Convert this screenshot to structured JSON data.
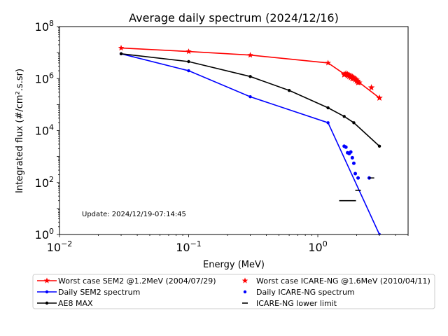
{
  "chart_data": {
    "type": "scatter",
    "title": "Average daily spectrum (2024/12/16)",
    "xlabel": "Energy (MeV)",
    "ylabel": "Integrated flux (#/cm².s.sr)",
    "xscale": "log",
    "yscale": "log",
    "xlim": [
      0.01,
      5.0
    ],
    "ylim": [
      1,
      100000000
    ],
    "grid": false,
    "legend_position": "below",
    "x_ticks": [
      {
        "value": 0.01,
        "base": "10",
        "exp": "−2"
      },
      {
        "value": 0.1,
        "base": "10",
        "exp": "−1"
      },
      {
        "value": 1,
        "base": "10",
        "exp": "0"
      }
    ],
    "y_ticks": [
      {
        "value": 1,
        "base": "10",
        "exp": "0"
      },
      {
        "value": 100,
        "base": "10",
        "exp": "2"
      },
      {
        "value": 10000,
        "base": "10",
        "exp": "4"
      },
      {
        "value": 1000000,
        "base": "10",
        "exp": "6"
      },
      {
        "value": 100000000,
        "base": "10",
        "exp": "8"
      }
    ],
    "annotation": "Update: 2024/12/19-07:14:45",
    "series": [
      {
        "name": "Worst case SEM2 @1.2MeV (2004/07/29)",
        "color": "#ff0000",
        "kind": "line",
        "marker": "star",
        "x": [
          0.03,
          0.1,
          0.3,
          1.2,
          1.6,
          1.65,
          1.7,
          1.75,
          1.8,
          1.85,
          1.9,
          1.95,
          2.0,
          2.05,
          2.1,
          3.0
        ],
        "y": [
          15000000,
          11000000,
          8000000,
          4000000,
          1500000,
          1600000,
          1500000,
          1400000,
          1300000,
          1200000,
          1100000,
          1000000,
          900000,
          800000,
          700000,
          180000
        ]
      },
      {
        "name": "Daily SEM2 spectrum",
        "color": "#0000ff",
        "kind": "line",
        "marker": "dot",
        "x": [
          0.03,
          0.1,
          0.3,
          1.2,
          3.0
        ],
        "y": [
          9000000,
          2000000,
          200000,
          20000,
          1
        ]
      },
      {
        "name": "AE8 MAX",
        "color": "#000000",
        "kind": "line",
        "marker": "dot",
        "x": [
          0.03,
          0.1,
          0.3,
          0.6,
          1.2,
          1.6,
          1.9,
          3.0
        ],
        "y": [
          9000000,
          4500000,
          1200000,
          350000,
          75000,
          35000,
          20000,
          2500
        ]
      },
      {
        "name": "Worst case ICARE-NG @1.6MeV (2010/04/11)",
        "color": "#ff0000",
        "kind": "scatter",
        "marker": "star",
        "x": [
          1.6,
          1.65,
          1.7,
          1.75,
          1.8,
          1.85,
          1.9,
          1.95,
          2.0,
          2.05,
          2.6,
          3.0
        ],
        "y": [
          1400000,
          1500000,
          1300000,
          1200000,
          1100000,
          1000000,
          1000000,
          900000,
          800000,
          700000,
          450000,
          180000
        ]
      },
      {
        "name": "Daily ICARE-NG spectrum",
        "color": "#0000ff",
        "kind": "scatter",
        "marker": "dot",
        "x": [
          1.6,
          1.65,
          1.7,
          1.75,
          1.8,
          1.85,
          1.9,
          1.95,
          2.05,
          2.5
        ],
        "y": [
          2500,
          2300,
          1400,
          1300,
          1500,
          900,
          550,
          220,
          150,
          150
        ]
      },
      {
        "name": "ICARE-NG lower limit",
        "color": "#000000",
        "kind": "scatter",
        "marker": "hline",
        "x": [
          1.7,
          2.05,
          2.6
        ],
        "y": [
          20,
          50,
          150
        ]
      }
    ]
  }
}
